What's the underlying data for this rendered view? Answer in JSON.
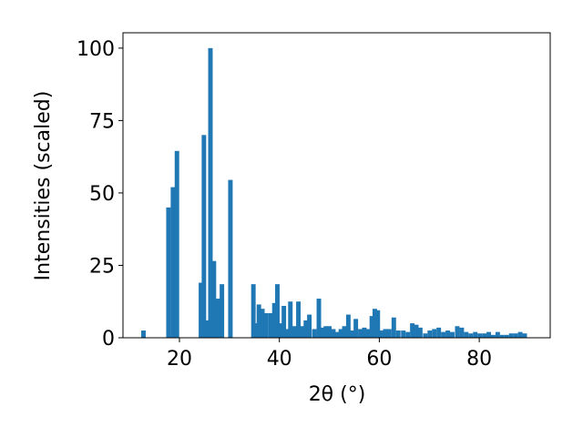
{
  "chart_data": {
    "type": "bar",
    "xlabel": "2θ (°)",
    "ylabel": "Intensities (scaled)",
    "x": [
      12.8,
      17.8,
      18.7,
      19.5,
      24.3,
      24.9,
      25.6,
      26.2,
      26.9,
      27.7,
      28.5,
      30.2,
      34.8,
      35.3,
      35.9,
      36.6,
      37.3,
      38.2,
      39.0,
      39.6,
      40.2,
      40.9,
      41.6,
      42.2,
      43.0,
      43.8,
      44.5,
      45.3,
      46.0,
      47.0,
      47.9,
      48.6,
      49.3,
      50.0,
      50.8,
      51.5,
      52.3,
      53.0,
      53.8,
      54.5,
      55.3,
      56.2,
      57.0,
      57.8,
      58.5,
      59.1,
      59.7,
      60.4,
      61.2,
      62.0,
      62.9,
      63.8,
      64.8,
      65.7,
      66.6,
      67.4,
      68.2,
      69.2,
      70.1,
      71.0,
      71.9,
      72.8,
      73.7,
      74.6,
      75.6,
      76.5,
      77.4,
      78.3,
      79.2,
      80.1,
      81.0,
      81.9,
      82.8,
      83.7,
      84.6,
      85.5,
      86.4,
      87.3,
      88.2,
      89.1
    ],
    "values": [
      2.5,
      45,
      52,
      64.5,
      19,
      70,
      6,
      100,
      26.5,
      13.5,
      18.5,
      54.5,
      18.5,
      5,
      11.5,
      10,
      8.5,
      8.5,
      12,
      18.5,
      5,
      11,
      3,
      12.5,
      4,
      12.5,
      4,
      6,
      8,
      3,
      13.5,
      3.5,
      4,
      4,
      3,
      2,
      3,
      4,
      8,
      2.5,
      6.5,
      3,
      3.5,
      3,
      7.5,
      10,
      9.5,
      2.5,
      3,
      3,
      7,
      2.5,
      2.5,
      2,
      5,
      4.5,
      3.5,
      1.5,
      2.5,
      3,
      3.5,
      2,
      2.5,
      2,
      4,
      3.5,
      2,
      1.5,
      2,
      1.5,
      1.5,
      2,
      1,
      2,
      1,
      1,
      1.5,
      1.5,
      2,
      1.5
    ],
    "color": "#1f77b4",
    "xlim": [
      8.7,
      94.2
    ],
    "xticks": [
      20,
      40,
      60,
      80
    ],
    "ylim": [
      0,
      105.3
    ],
    "yticks": [
      0,
      25,
      50,
      75,
      100
    ],
    "grid": false
  }
}
